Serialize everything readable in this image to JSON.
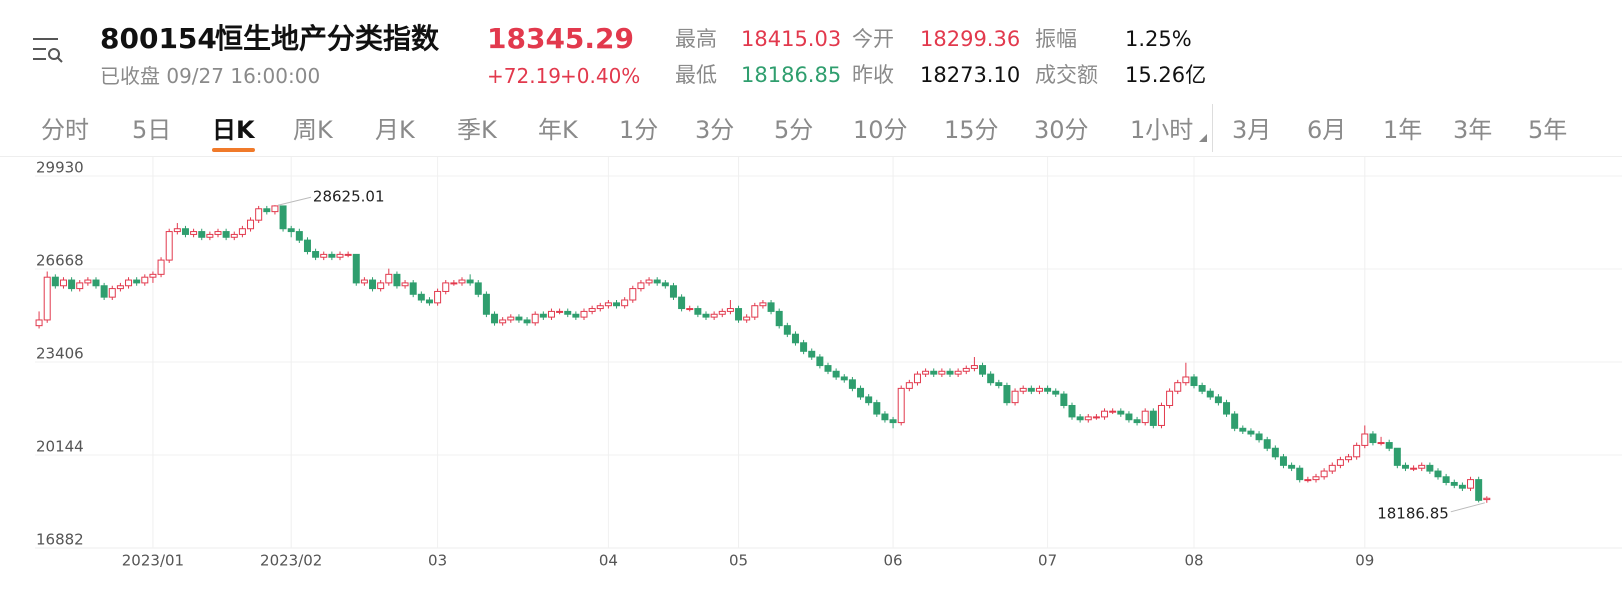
{
  "header": {
    "symbol": "800154",
    "name": "恒生地产分类指数",
    "price": "18345.29",
    "status": "已收盘 09/27 16:00:00",
    "change": "+72.19",
    "change_pct": "+0.40%",
    "stats": [
      {
        "label": "最高",
        "value": "18415.03"
      },
      {
        "label": "今开",
        "value": "18299.36"
      },
      {
        "label": "振幅",
        "value": "1.25%"
      },
      {
        "label": "最低",
        "value": "18186.85"
      },
      {
        "label": "昨收",
        "value": "18273.10"
      },
      {
        "label": "成交额",
        "value": "15.26亿"
      }
    ]
  },
  "tabs": [
    "分时",
    "5日",
    "日K",
    "周K",
    "月K",
    "季K",
    "年K",
    "1分",
    "3分",
    "5分",
    "10分",
    "15分",
    "30分",
    "1小时",
    "3月",
    "6月",
    "1年",
    "3年",
    "5年"
  ],
  "active_tab": "日K",
  "chart_data": {
    "type": "candlestick",
    "up_color": "#e2394d",
    "down_color": "#2f9e6e",
    "grid": true,
    "ylim": [
      16882,
      29930
    ],
    "yticks": [
      29930,
      26668,
      23406,
      20144,
      16882
    ],
    "xlim": [
      -0.5,
      187
    ],
    "xticks": [
      {
        "value": 14,
        "label": "2023/01"
      },
      {
        "value": 31,
        "label": "2023/02"
      },
      {
        "value": 49,
        "label": "03"
      },
      {
        "value": 70,
        "label": "04"
      },
      {
        "value": 86,
        "label": "05"
      },
      {
        "value": 105,
        "label": "06"
      },
      {
        "value": 124,
        "label": "07"
      },
      {
        "value": 142,
        "label": "08"
      },
      {
        "value": 163,
        "label": "09"
      }
    ],
    "max_label": 28625.01,
    "max_index": 29,
    "min_label": 18186.85,
    "min_index": 178,
    "ohlc": [
      [
        24400,
        24900,
        24300,
        24600
      ],
      [
        24600,
        26300,
        24500,
        26100
      ],
      [
        26100,
        26200,
        25700,
        25800
      ],
      [
        25800,
        26100,
        25700,
        26000
      ],
      [
        26000,
        26100,
        25600,
        25700
      ],
      [
        25700,
        26000,
        25600,
        25900
      ],
      [
        25900,
        26100,
        25800,
        26000
      ],
      [
        26000,
        26100,
        25700,
        25800
      ],
      [
        25800,
        25900,
        25300,
        25400
      ],
      [
        25400,
        25800,
        25300,
        25700
      ],
      [
        25700,
        25900,
        25600,
        25800
      ],
      [
        25800,
        26100,
        25700,
        26000
      ],
      [
        26000,
        26100,
        25800,
        25900
      ],
      [
        25900,
        26200,
        25800,
        26100
      ],
      [
        26100,
        26300,
        25900,
        26200
      ],
      [
        26200,
        26800,
        26100,
        26700
      ],
      [
        26700,
        27800,
        26600,
        27700
      ],
      [
        27700,
        28000,
        27600,
        27800
      ],
      [
        27800,
        27900,
        27500,
        27600
      ],
      [
        27600,
        27800,
        27500,
        27700
      ],
      [
        27700,
        27800,
        27400,
        27500
      ],
      [
        27500,
        27700,
        27400,
        27600
      ],
      [
        27600,
        27800,
        27500,
        27700
      ],
      [
        27700,
        27800,
        27400,
        27500
      ],
      [
        27500,
        27700,
        27400,
        27600
      ],
      [
        27600,
        27900,
        27500,
        27800
      ],
      [
        27800,
        28200,
        27700,
        28100
      ],
      [
        28100,
        28600,
        28000,
        28500
      ],
      [
        28500,
        28600,
        28300,
        28400
      ],
      [
        28400,
        28625.01,
        28300,
        28600
      ],
      [
        28600,
        28600,
        27700,
        27800
      ],
      [
        27800,
        27900,
        27500,
        27700
      ],
      [
        27700,
        27800,
        27300,
        27400
      ],
      [
        27400,
        27500,
        26900,
        27000
      ],
      [
        27000,
        27100,
        26700,
        26800
      ],
      [
        26800,
        27000,
        26700,
        26900
      ],
      [
        26900,
        27000,
        26700,
        26800
      ],
      [
        26800,
        27000,
        26700,
        26900
      ],
      [
        26900,
        27000,
        26800,
        26900
      ],
      [
        26900,
        26900,
        25800,
        25900
      ],
      [
        25900,
        26100,
        25800,
        26000
      ],
      [
        26000,
        26100,
        25600,
        25700
      ],
      [
        25700,
        26000,
        25600,
        25900
      ],
      [
        25900,
        26400,
        25800,
        26200
      ],
      [
        26200,
        26300,
        25700,
        25800
      ],
      [
        25800,
        26000,
        25700,
        25900
      ],
      [
        25900,
        26000,
        25400,
        25500
      ],
      [
        25500,
        25600,
        25200,
        25300
      ],
      [
        25300,
        25400,
        25100,
        25200
      ],
      [
        25200,
        25700,
        25100,
        25600
      ],
      [
        25600,
        26000,
        25500,
        25900
      ],
      [
        25900,
        26000,
        25800,
        25900
      ],
      [
        25900,
        26100,
        25800,
        26000
      ],
      [
        26000,
        26200,
        25800,
        25900
      ],
      [
        25900,
        26000,
        25400,
        25500
      ],
      [
        25500,
        25600,
        24700,
        24800
      ],
      [
        24800,
        24900,
        24400,
        24500
      ],
      [
        24500,
        24700,
        24400,
        24600
      ],
      [
        24600,
        24800,
        24500,
        24700
      ],
      [
        24700,
        24800,
        24500,
        24600
      ],
      [
        24600,
        24700,
        24400,
        24500
      ],
      [
        24500,
        24900,
        24400,
        24800
      ],
      [
        24800,
        24900,
        24600,
        24700
      ],
      [
        24700,
        25000,
        24600,
        24900
      ],
      [
        24900,
        25000,
        24800,
        24900
      ],
      [
        24900,
        25000,
        24700,
        24800
      ],
      [
        24800,
        24900,
        24600,
        24700
      ],
      [
        24700,
        25000,
        24600,
        24900
      ],
      [
        24900,
        25100,
        24800,
        25000
      ],
      [
        25000,
        25200,
        24900,
        25100
      ],
      [
        25100,
        25300,
        25000,
        25200
      ],
      [
        25200,
        25300,
        25000,
        25100
      ],
      [
        25100,
        25400,
        25000,
        25300
      ],
      [
        25300,
        25800,
        25200,
        25700
      ],
      [
        25700,
        26000,
        25600,
        25900
      ],
      [
        25900,
        26100,
        25800,
        26000
      ],
      [
        26000,
        26100,
        25800,
        25900
      ],
      [
        25900,
        26000,
        25700,
        25800
      ],
      [
        25800,
        25900,
        25300,
        25400
      ],
      [
        25400,
        25500,
        24900,
        25000
      ],
      [
        25000,
        25100,
        24900,
        25000
      ],
      [
        25000,
        25100,
        24700,
        24800
      ],
      [
        24800,
        24900,
        24600,
        24700
      ],
      [
        24700,
        24900,
        24600,
        24800
      ],
      [
        24800,
        25000,
        24700,
        24900
      ],
      [
        24900,
        25300,
        24800,
        25000
      ],
      [
        25000,
        25100,
        24500,
        24600
      ],
      [
        24600,
        24800,
        24500,
        24700
      ],
      [
        24700,
        25200,
        24600,
        25100
      ],
      [
        25100,
        25300,
        25000,
        25200
      ],
      [
        25200,
        25300,
        24800,
        24900
      ],
      [
        24900,
        25000,
        24300,
        24400
      ],
      [
        24400,
        24500,
        24000,
        24100
      ],
      [
        24100,
        24200,
        23700,
        23800
      ],
      [
        23800,
        23900,
        23400,
        23500
      ],
      [
        23500,
        23600,
        23200,
        23300
      ],
      [
        23300,
        23400,
        22900,
        23000
      ],
      [
        23000,
        23100,
        22700,
        22800
      ],
      [
        22800,
        22900,
        22500,
        22600
      ],
      [
        22600,
        22700,
        22400,
        22500
      ],
      [
        22500,
        22600,
        22100,
        22200
      ],
      [
        22200,
        22300,
        21800,
        21900
      ],
      [
        21900,
        22000,
        21600,
        21700
      ],
      [
        21700,
        21800,
        21200,
        21300
      ],
      [
        21300,
        21400,
        21000,
        21100
      ],
      [
        21100,
        21200,
        20800,
        21000
      ],
      [
        21000,
        22300,
        20900,
        22200
      ],
      [
        22200,
        22500,
        22100,
        22400
      ],
      [
        22400,
        22800,
        22300,
        22700
      ],
      [
        22700,
        22900,
        22600,
        22800
      ],
      [
        22800,
        22900,
        22600,
        22700
      ],
      [
        22700,
        22900,
        22600,
        22800
      ],
      [
        22800,
        22900,
        22600,
        22700
      ],
      [
        22700,
        22900,
        22600,
        22800
      ],
      [
        22800,
        23000,
        22700,
        22900
      ],
      [
        22900,
        23300,
        22800,
        23000
      ],
      [
        23000,
        23100,
        22600,
        22700
      ],
      [
        22700,
        22800,
        22300,
        22400
      ],
      [
        22400,
        22500,
        22200,
        22300
      ],
      [
        22300,
        22400,
        21600,
        21700
      ],
      [
        21700,
        22200,
        21600,
        22100
      ],
      [
        22100,
        22300,
        22000,
        22200
      ],
      [
        22200,
        22300,
        22000,
        22100
      ],
      [
        22100,
        22300,
        22000,
        22200
      ],
      [
        22200,
        22300,
        22000,
        22100
      ],
      [
        22100,
        22200,
        21900,
        22000
      ],
      [
        22000,
        22100,
        21500,
        21600
      ],
      [
        21600,
        21700,
        21100,
        21200
      ],
      [
        21200,
        21300,
        21000,
        21100
      ],
      [
        21100,
        21300,
        21000,
        21200
      ],
      [
        21200,
        21300,
        21100,
        21200
      ],
      [
        21200,
        21500,
        21100,
        21400
      ],
      [
        21400,
        21500,
        21300,
        21400
      ],
      [
        21400,
        21500,
        21200,
        21300
      ],
      [
        21300,
        21400,
        21000,
        21100
      ],
      [
        21100,
        21200,
        20900,
        21000
      ],
      [
        21000,
        21500,
        20900,
        21400
      ],
      [
        21400,
        21500,
        20800,
        20900
      ],
      [
        20900,
        21700,
        20800,
        21600
      ],
      [
        21600,
        22200,
        21500,
        22100
      ],
      [
        22100,
        22500,
        22000,
        22400
      ],
      [
        22400,
        23100,
        22300,
        22600
      ],
      [
        22600,
        22700,
        22200,
        22300
      ],
      [
        22300,
        22400,
        22000,
        22100
      ],
      [
        22100,
        22200,
        21800,
        21900
      ],
      [
        21900,
        22000,
        21600,
        21700
      ],
      [
        21700,
        21800,
        21200,
        21300
      ],
      [
        21300,
        21400,
        20700,
        20800
      ],
      [
        20800,
        20900,
        20600,
        20700
      ],
      [
        20700,
        20800,
        20500,
        20600
      ],
      [
        20600,
        20700,
        20300,
        20400
      ],
      [
        20400,
        20500,
        20000,
        20100
      ],
      [
        20100,
        20200,
        19700,
        19800
      ],
      [
        19800,
        19900,
        19400,
        19500
      ],
      [
        19500,
        19600,
        19300,
        19400
      ],
      [
        19400,
        19500,
        18900,
        19000
      ],
      [
        19000,
        19100,
        18900,
        19000
      ],
      [
        19000,
        19200,
        18900,
        19100
      ],
      [
        19100,
        19400,
        19000,
        19300
      ],
      [
        19300,
        19600,
        19200,
        19500
      ],
      [
        19500,
        19800,
        19400,
        19700
      ],
      [
        19700,
        19900,
        19600,
        19800
      ],
      [
        19800,
        20300,
        19700,
        20200
      ],
      [
        20200,
        20900,
        20100,
        20600
      ],
      [
        20600,
        20700,
        20200,
        20300
      ],
      [
        20300,
        20500,
        20200,
        20300
      ],
      [
        20300,
        20400,
        20000,
        20100
      ],
      [
        20100,
        20100,
        19400,
        19500
      ],
      [
        19500,
        19600,
        19300,
        19400
      ],
      [
        19400,
        19500,
        19300,
        19400
      ],
      [
        19400,
        19600,
        19300,
        19500
      ],
      [
        19500,
        19600,
        19200,
        19300
      ],
      [
        19300,
        19400,
        19000,
        19100
      ],
      [
        19100,
        19200,
        18800,
        18900
      ],
      [
        18900,
        19000,
        18700,
        18800
      ],
      [
        18800,
        18900,
        18600,
        18700
      ],
      [
        18700,
        19100,
        18600,
        19000
      ],
      [
        19000,
        19100,
        18200,
        18273.1
      ],
      [
        18299.36,
        18415.03,
        18186.85,
        18345.29
      ]
    ]
  }
}
